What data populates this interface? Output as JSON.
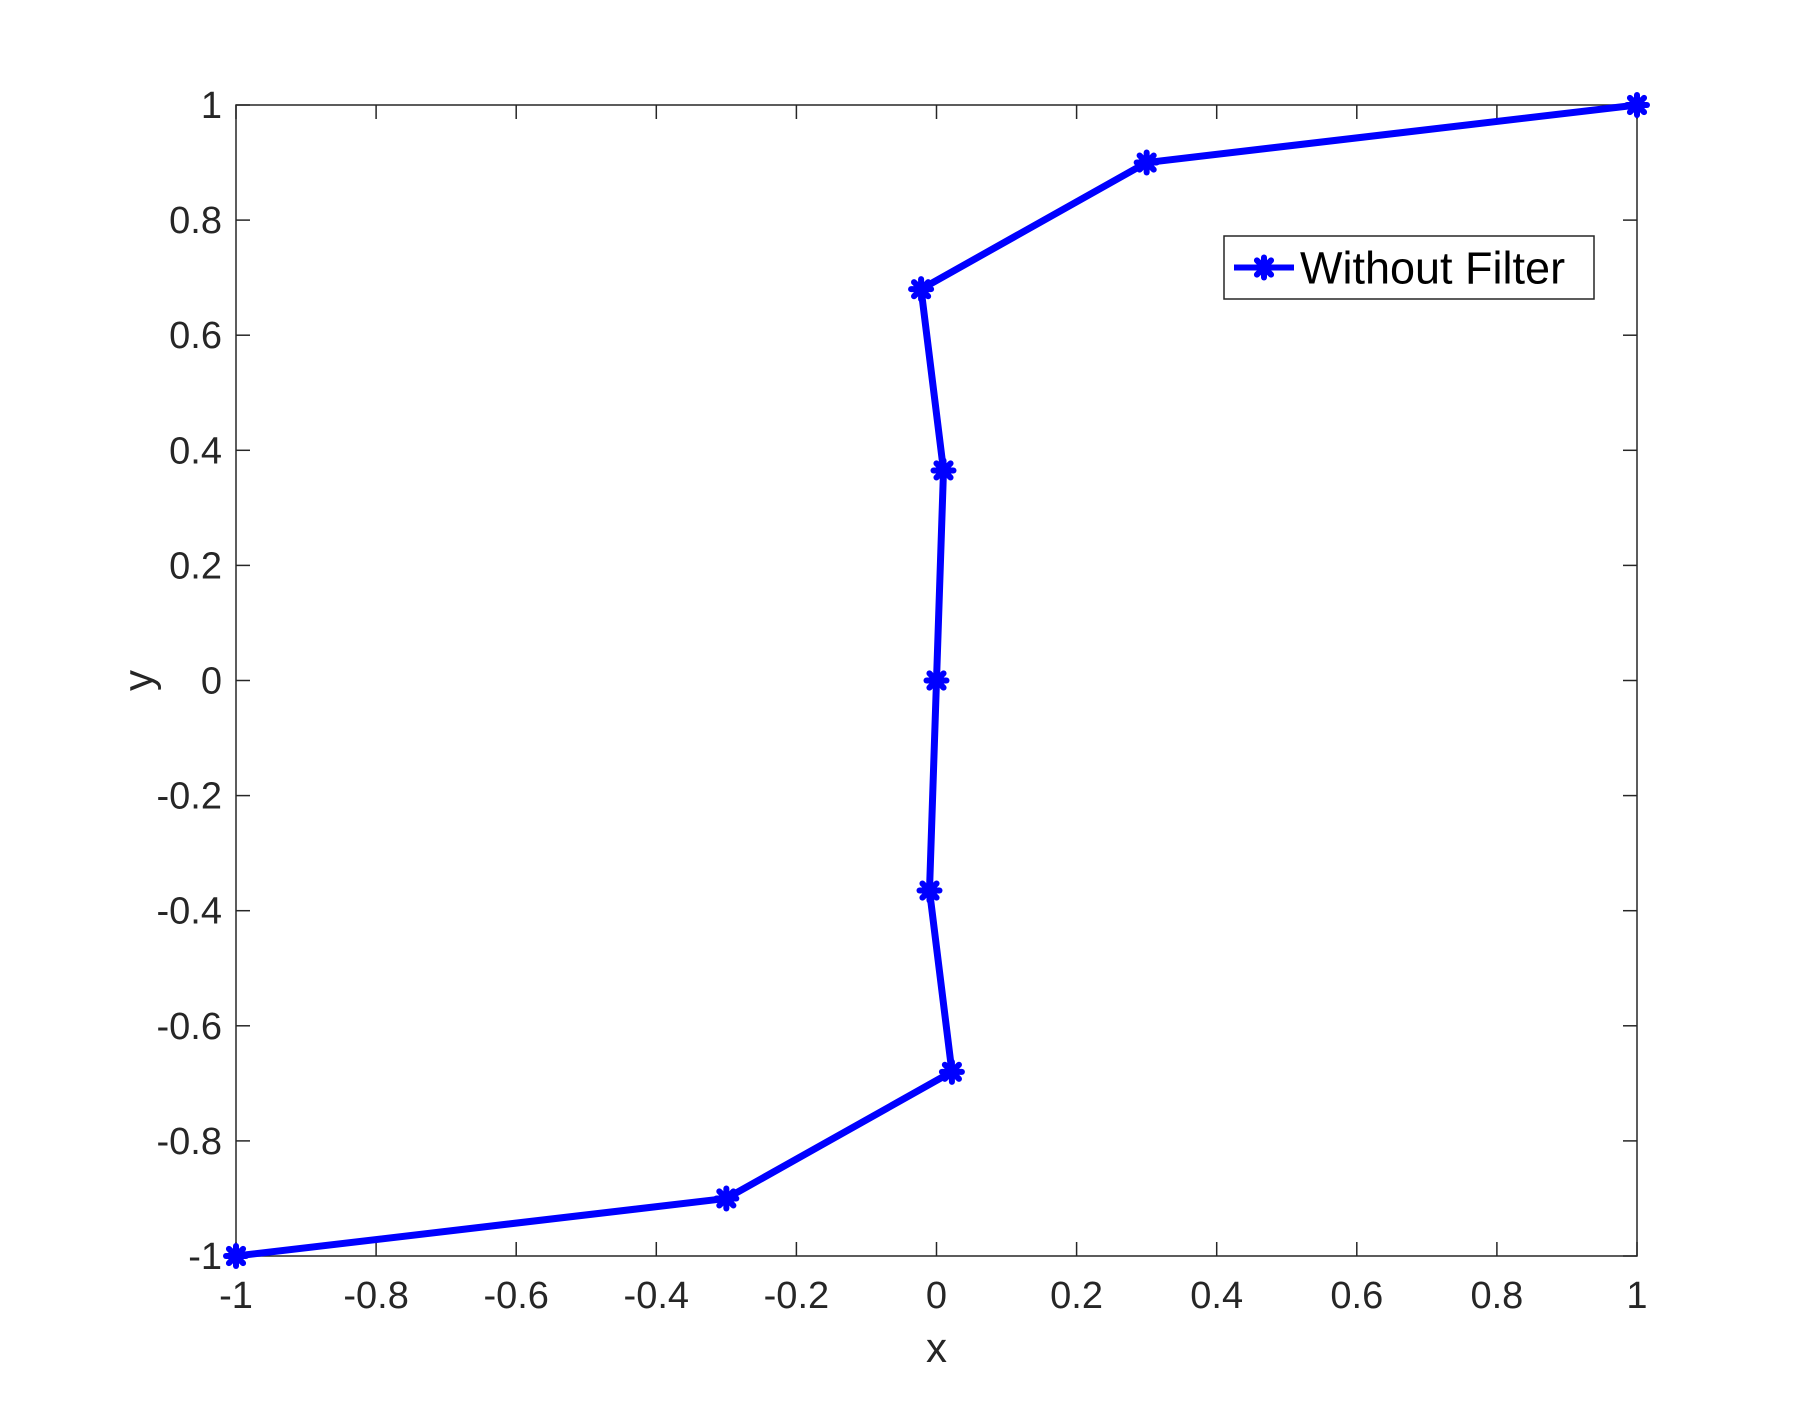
{
  "chart_data": {
    "type": "line",
    "title": "",
    "xlabel": "x",
    "ylabel": "y",
    "xlim": [
      -1,
      1
    ],
    "ylim": [
      -1,
      1
    ],
    "xticks": [
      -1,
      -0.8,
      -0.6,
      -0.4,
      -0.2,
      0,
      0.2,
      0.4,
      0.6,
      0.8,
      1
    ],
    "xtick_labels": [
      "-1",
      "-0.8",
      "-0.6",
      "-0.4",
      "-0.2",
      "0",
      "0.2",
      "0.4",
      "0.6",
      "0.8",
      "1"
    ],
    "yticks": [
      -1,
      -0.8,
      -0.6,
      -0.4,
      -0.2,
      0,
      0.2,
      0.4,
      0.6,
      0.8,
      1
    ],
    "ytick_labels": [
      "-1",
      "-0.8",
      "-0.6",
      "-0.4",
      "-0.2",
      "0",
      "0.2",
      "0.4",
      "0.6",
      "0.8",
      "1"
    ],
    "grid": false,
    "legend_position": "top-right",
    "series": [
      {
        "name": "Without Filter",
        "color": "#0000ff",
        "marker": "asterisk",
        "x": [
          -1,
          -0.3,
          0.022,
          -0.01,
          0,
          0.01,
          -0.022,
          0.3,
          1
        ],
        "y": [
          -1,
          -0.9,
          -0.68,
          -0.365,
          0,
          0.365,
          0.68,
          0.9,
          1
        ]
      }
    ]
  }
}
